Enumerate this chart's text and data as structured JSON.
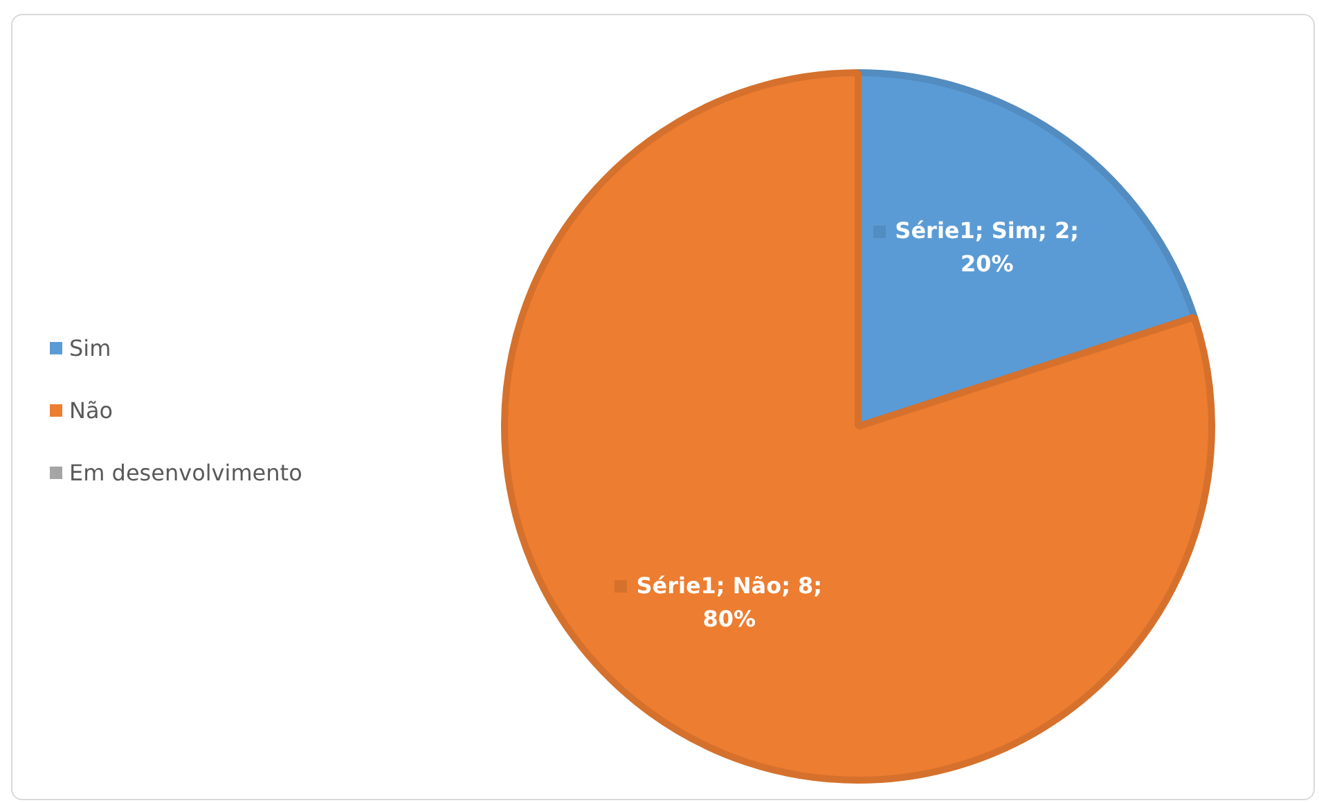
{
  "chart_data": {
    "type": "pie",
    "categories": [
      "Sim",
      "Não",
      "Em desenvolvimento"
    ],
    "values": [
      2,
      8,
      0
    ],
    "colors": [
      "#5b9bd5",
      "#ed7d31",
      "#a5a5a5"
    ],
    "value_labels": [
      "Série1; Sim; 2; 20%",
      "Série1; Não; 8; 80%",
      null
    ],
    "legend": "left"
  }
}
